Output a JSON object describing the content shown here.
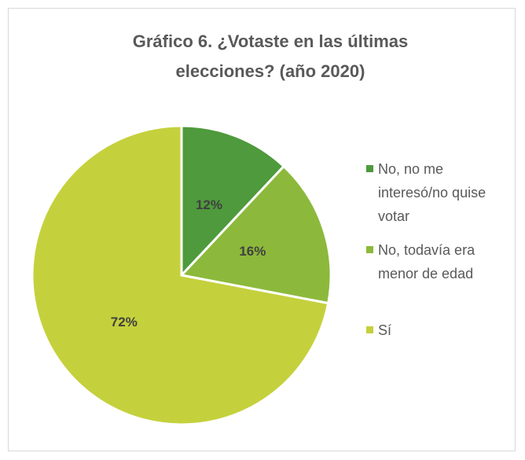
{
  "chart_data": {
    "type": "pie",
    "title": "Gráfico 6. ¿Votaste en las últimas elecciones? (año 2020)",
    "categories": [
      "No, no me interesó/no quise votar",
      "No, todavía era menor de edad",
      "Sí"
    ],
    "values": [
      12,
      16,
      72
    ],
    "value_labels": [
      "12%",
      "16%",
      "72%"
    ],
    "colors": [
      "#4e9a3c",
      "#8cb93b",
      "#c4d13c"
    ],
    "legend": "right"
  }
}
